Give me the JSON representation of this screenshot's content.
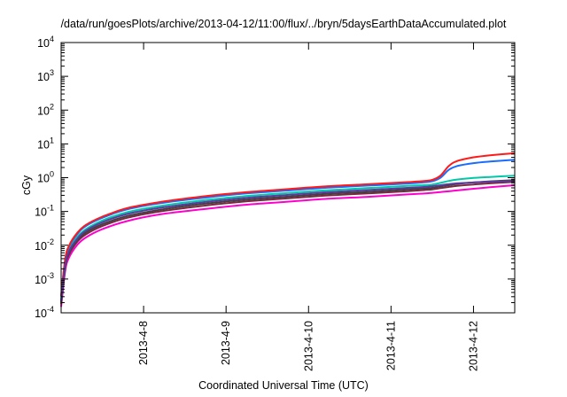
{
  "chart_data": {
    "type": "line",
    "title": "/data/run/goesPlots/archive/2013-04-12/11:00/flux/../bryn/5daysEarthDataAccumulated.plot",
    "xlabel": "Coordinated Universal Time (UTC)",
    "ylabel": "cGy",
    "xlim": [
      "2013-04-07 00:00",
      "2013-04-12 12:00"
    ],
    "ylim": [
      0.0001,
      10000
    ],
    "yscale": "log",
    "grid": false,
    "legend": "none",
    "x_ticks": [
      "2013-4-8",
      "2013-4-9",
      "2013-4-10",
      "2013-4-11",
      "2013-4-12"
    ],
    "y_ticks": [
      {
        "mantissa": "10",
        "exponent": "-4",
        "value": 0.0001
      },
      {
        "mantissa": "10",
        "exponent": "-3",
        "value": 0.001
      },
      {
        "mantissa": "10",
        "exponent": "-2",
        "value": 0.01
      },
      {
        "mantissa": "10",
        "exponent": "-1",
        "value": 0.1
      },
      {
        "mantissa": "10",
        "exponent": "0",
        "value": 1
      },
      {
        "mantissa": "10",
        "exponent": "1",
        "value": 10
      },
      {
        "mantissa": "10",
        "exponent": "2",
        "value": 100
      },
      {
        "mantissa": "10",
        "exponent": "3",
        "value": 1000
      },
      {
        "mantissa": "10",
        "exponent": "4",
        "value": 10000
      }
    ],
    "series": [
      {
        "color": "#ff00cc",
        "x": [
          "2013-04-07 00:00",
          "2013-04-07 01:12",
          "2013-04-07 02:24",
          "2013-04-07 04:48",
          "2013-04-07 07:12",
          "2013-04-07 12:00",
          "2013-04-07 19:12",
          "2013-04-08 04:48",
          "2013-04-08 16:48",
          "2013-04-09 04:48",
          "2013-04-09 16:48",
          "2013-04-10 04:48",
          "2013-04-10 16:48",
          "2013-04-11 04:48",
          "2013-04-11 09:36",
          "2013-04-11 12:00",
          "2013-04-11 14:24",
          "2013-04-11 16:48",
          "2013-04-11 19:12",
          "2013-04-12 00:00",
          "2013-04-12 04:48",
          "2013-04-12 12:00"
        ],
        "y": [
          0.00015,
          0.0018,
          0.0045,
          0.0105,
          0.017,
          0.03,
          0.052,
          0.082,
          0.115,
          0.155,
          0.19,
          0.235,
          0.27,
          0.32,
          0.34,
          0.355,
          0.375,
          0.395,
          0.42,
          0.47,
          0.52,
          0.6
        ]
      },
      {
        "color": "#7a2840",
        "x": [
          "2013-04-07 00:00",
          "2013-04-07 01:12",
          "2013-04-07 02:24",
          "2013-04-07 04:48",
          "2013-04-07 07:12",
          "2013-04-07 12:00",
          "2013-04-07 19:12",
          "2013-04-08 04:48",
          "2013-04-08 16:48",
          "2013-04-09 04:48",
          "2013-04-09 16:48",
          "2013-04-10 04:48",
          "2013-04-10 16:48",
          "2013-04-11 04:48",
          "2013-04-11 09:36",
          "2013-04-11 12:00",
          "2013-04-11 14:24",
          "2013-04-11 16:48",
          "2013-04-11 19:12",
          "2013-04-12 00:00",
          "2013-04-12 04:48",
          "2013-04-12 12:00"
        ],
        "y": [
          0.00018,
          0.0022,
          0.0056,
          0.013,
          0.021,
          0.037,
          0.065,
          0.1,
          0.145,
          0.195,
          0.24,
          0.295,
          0.34,
          0.4,
          0.43,
          0.45,
          0.49,
          0.53,
          0.57,
          0.63,
          0.68,
          0.75
        ]
      },
      {
        "color": "#404040",
        "x": [
          "2013-04-07 00:00",
          "2013-04-07 01:12",
          "2013-04-07 02:24",
          "2013-04-07 04:48",
          "2013-04-07 07:12",
          "2013-04-07 12:00",
          "2013-04-07 19:12",
          "2013-04-08 04:48",
          "2013-04-08 16:48",
          "2013-04-09 04:48",
          "2013-04-09 16:48",
          "2013-04-10 04:48",
          "2013-04-10 16:48",
          "2013-04-11 04:48",
          "2013-04-11 09:36",
          "2013-04-11 12:00",
          "2013-04-11 14:24",
          "2013-04-11 16:48",
          "2013-04-11 19:12",
          "2013-04-12 00:00",
          "2013-04-12 04:48",
          "2013-04-12 12:00"
        ],
        "y": [
          0.0002,
          0.0025,
          0.0063,
          0.0145,
          0.024,
          0.042,
          0.073,
          0.112,
          0.165,
          0.22,
          0.27,
          0.33,
          0.38,
          0.45,
          0.48,
          0.5,
          0.55,
          0.6,
          0.65,
          0.72,
          0.78,
          0.85
        ]
      },
      {
        "color": "#00c8a8",
        "x": [
          "2013-04-07 00:00",
          "2013-04-07 01:12",
          "2013-04-07 02:24",
          "2013-04-07 04:48",
          "2013-04-07 07:12",
          "2013-04-07 12:00",
          "2013-04-07 19:12",
          "2013-04-08 04:48",
          "2013-04-08 16:48",
          "2013-04-09 04:48",
          "2013-04-09 16:48",
          "2013-04-10 04:48",
          "2013-04-10 16:48",
          "2013-04-11 04:48",
          "2013-04-11 09:36",
          "2013-04-11 12:00",
          "2013-04-11 14:24",
          "2013-04-11 16:48",
          "2013-04-11 19:12",
          "2013-04-12 00:00",
          "2013-04-12 04:48",
          "2013-04-12 12:00"
        ],
        "y": [
          0.00025,
          0.0031,
          0.0079,
          0.018,
          0.03,
          0.054,
          0.095,
          0.145,
          0.21,
          0.28,
          0.345,
          0.42,
          0.49,
          0.57,
          0.6,
          0.63,
          0.7,
          0.8,
          0.88,
          0.98,
          1.05,
          1.15
        ]
      },
      {
        "color": "#1a6cff",
        "x": [
          "2013-04-07 00:00",
          "2013-04-07 01:12",
          "2013-04-07 02:24",
          "2013-04-07 04:48",
          "2013-04-07 07:12",
          "2013-04-07 12:00",
          "2013-04-07 19:12",
          "2013-04-08 04:48",
          "2013-04-08 16:48",
          "2013-04-09 04:48",
          "2013-04-09 16:48",
          "2013-04-10 04:48",
          "2013-04-10 16:48",
          "2013-04-11 04:48",
          "2013-04-11 09:36",
          "2013-04-11 12:00",
          "2013-04-11 14:24",
          "2013-04-11 16:48",
          "2013-04-11 19:12",
          "2013-04-12 00:00",
          "2013-04-12 04:48",
          "2013-04-12 12:00"
        ],
        "y": [
          0.0003,
          0.0038,
          0.0095,
          0.022,
          0.037,
          0.065,
          0.115,
          0.175,
          0.25,
          0.335,
          0.41,
          0.5,
          0.58,
          0.67,
          0.73,
          0.78,
          1.0,
          1.7,
          2.2,
          2.7,
          3.0,
          3.4
        ]
      },
      {
        "color": "#ff1a1a",
        "x": [
          "2013-04-07 00:00",
          "2013-04-07 01:12",
          "2013-04-07 02:24",
          "2013-04-07 04:48",
          "2013-04-07 07:12",
          "2013-04-07 12:00",
          "2013-04-07 19:12",
          "2013-04-08 04:48",
          "2013-04-08 16:48",
          "2013-04-09 04:48",
          "2013-04-09 16:48",
          "2013-04-10 04:48",
          "2013-04-10 16:48",
          "2013-04-11 04:48",
          "2013-04-11 09:36",
          "2013-04-11 12:00",
          "2013-04-11 14:24",
          "2013-04-11 16:48",
          "2013-04-11 19:12",
          "2013-04-12 00:00",
          "2013-04-12 04:48",
          "2013-04-12 12:00"
        ],
        "y": [
          0.00032,
          0.0041,
          0.0102,
          0.024,
          0.04,
          0.07,
          0.125,
          0.19,
          0.275,
          0.365,
          0.45,
          0.55,
          0.635,
          0.74,
          0.8,
          0.86,
          1.15,
          2.2,
          3.1,
          4.0,
          4.6,
          5.3
        ]
      },
      {
        "color": "#5a3aa0",
        "x": [
          "2013-04-07 00:00",
          "2013-04-07 01:12",
          "2013-04-07 02:24",
          "2013-04-07 04:48",
          "2013-04-07 07:12",
          "2013-04-07 12:00",
          "2013-04-07 19:12",
          "2013-04-08 04:48",
          "2013-04-08 16:48",
          "2013-04-09 04:48",
          "2013-04-09 16:48",
          "2013-04-10 04:48",
          "2013-04-10 16:48",
          "2013-04-11 04:48",
          "2013-04-11 09:36",
          "2013-04-11 12:00",
          "2013-04-11 14:24",
          "2013-04-11 16:48",
          "2013-04-11 19:12",
          "2013-04-12 00:00",
          "2013-04-12 04:48",
          "2013-04-12 12:00"
        ],
        "y": [
          0.00022,
          0.0028,
          0.007,
          0.016,
          0.027,
          0.048,
          0.084,
          0.128,
          0.185,
          0.248,
          0.305,
          0.37,
          0.43,
          0.5,
          0.53,
          0.56,
          0.6,
          0.64,
          0.68,
          0.72,
          0.76,
          0.8
        ]
      }
    ]
  }
}
